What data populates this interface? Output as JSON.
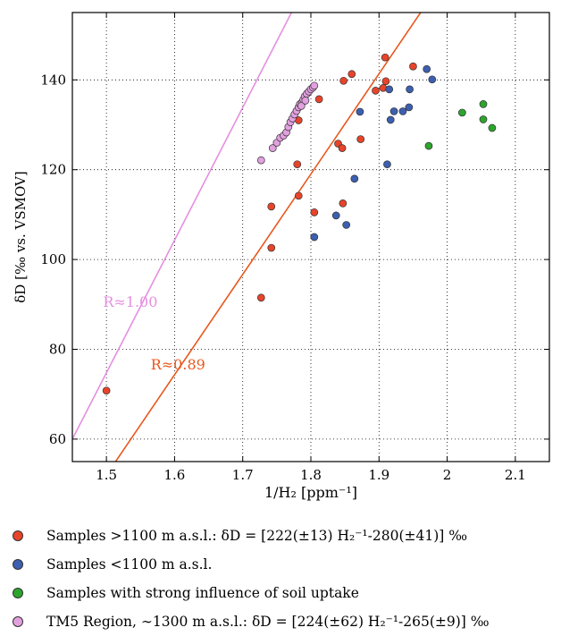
{
  "chart_data": {
    "type": "scatter",
    "xlabel": "1/H₂ [ppm⁻¹]",
    "ylabel": "δD [‰ vs. VSMOV]",
    "xlim": [
      1.45,
      2.15
    ],
    "ylim": [
      55,
      155
    ],
    "x_ticks": [
      "1.5",
      "1.6",
      "1.7",
      "1.8",
      "1.9",
      "2",
      "2.1"
    ],
    "y_ticks": [
      "60",
      "80",
      "100",
      "120",
      "140"
    ],
    "grid": true,
    "series": [
      {
        "name": "Samples >1100 m a.s.l.: δD = [222(±13) H₂⁻¹-280(±41)] ‰",
        "color": "#e8442a",
        "points": [
          [
            1.5,
            70.8
          ],
          [
            1.727,
            91.5
          ],
          [
            1.742,
            102.6
          ],
          [
            1.742,
            111.8
          ],
          [
            1.78,
            121.2
          ],
          [
            1.782,
            114.2
          ],
          [
            1.782,
            131.0
          ],
          [
            1.805,
            110.5
          ],
          [
            1.812,
            135.7
          ],
          [
            1.84,
            125.8
          ],
          [
            1.846,
            124.8
          ],
          [
            1.847,
            112.5
          ],
          [
            1.848,
            139.8
          ],
          [
            1.86,
            141.3
          ],
          [
            1.873,
            126.8
          ],
          [
            1.895,
            137.6
          ],
          [
            1.906,
            138.2
          ],
          [
            1.909,
            145.0
          ],
          [
            1.91,
            139.7
          ],
          [
            1.95,
            143.0
          ]
        ]
      },
      {
        "name": "Samples <1100 m a.s.l.",
        "color": "#3d5fb0",
        "points": [
          [
            1.805,
            105.0
          ],
          [
            1.837,
            109.8
          ],
          [
            1.852,
            107.7
          ],
          [
            1.864,
            118.0
          ],
          [
            1.872,
            132.9
          ],
          [
            1.912,
            121.2
          ],
          [
            1.915,
            137.9
          ],
          [
            1.917,
            131.1
          ],
          [
            1.922,
            133.0
          ],
          [
            1.935,
            133.0
          ],
          [
            1.944,
            133.9
          ],
          [
            1.945,
            137.9
          ],
          [
            1.97,
            142.4
          ],
          [
            1.978,
            140.1
          ]
        ]
      },
      {
        "name": "Samples with strong influence of soil uptake",
        "color": "#2da52d",
        "points": [
          [
            1.973,
            125.3
          ],
          [
            2.022,
            132.7
          ],
          [
            2.053,
            134.6
          ],
          [
            2.053,
            131.2
          ],
          [
            2.066,
            129.3
          ]
        ]
      },
      {
        "name": "TM5 Region, ∼1300 m a.s.l.: δD = [224(±62) H₂⁻¹-265(±9)] ‰",
        "color": "#e3a0e0",
        "points": [
          [
            1.727,
            122.1
          ],
          [
            1.744,
            124.8
          ],
          [
            1.75,
            126.0
          ],
          [
            1.755,
            127.1
          ],
          [
            1.76,
            127.6
          ],
          [
            1.764,
            128.3
          ],
          [
            1.767,
            129.5
          ],
          [
            1.77,
            130.6
          ],
          [
            1.773,
            131.4
          ],
          [
            1.776,
            132.3
          ],
          [
            1.779,
            133.1
          ],
          [
            1.782,
            133.9
          ],
          [
            1.784,
            134.6
          ],
          [
            1.787,
            135.0
          ],
          [
            1.789,
            135.6
          ],
          [
            1.791,
            136.3
          ],
          [
            1.794,
            136.9
          ],
          [
            1.797,
            137.4
          ],
          [
            1.8,
            137.9
          ],
          [
            1.803,
            138.3
          ],
          [
            1.805,
            138.7
          ],
          [
            1.786,
            134.2
          ],
          [
            1.792,
            135.4
          ]
        ]
      }
    ],
    "fit_lines": [
      {
        "label": "R≈1.00",
        "color": "#e58fe0",
        "x": [
          1.45,
          1.775
        ],
        "y": [
          60.0,
          156.0
        ],
        "label_at": [
          1.495,
          89.5
        ]
      },
      {
        "label": "R≈0.89",
        "color": "#e8581d",
        "x": [
          1.5,
          1.97
        ],
        "y": [
          52.0,
          157.0
        ],
        "label_at": [
          1.565,
          75.5
        ]
      }
    ]
  },
  "legend": {
    "items": [
      {
        "label": "Samples >1100 m a.s.l.: δD = [222(±13) H₂⁻¹-280(±41)] ‰",
        "color": "#e8442a"
      },
      {
        "label": "Samples <1100 m a.s.l.",
        "color": "#3d5fb0"
      },
      {
        "label": "Samples with strong influence of soil uptake",
        "color": "#2da52d"
      },
      {
        "label": "TM5 Region, ∼1300 m a.s.l.: δD = [224(±62) H₂⁻¹-265(±9)] ‰",
        "color": "#e3a0e0"
      }
    ]
  }
}
